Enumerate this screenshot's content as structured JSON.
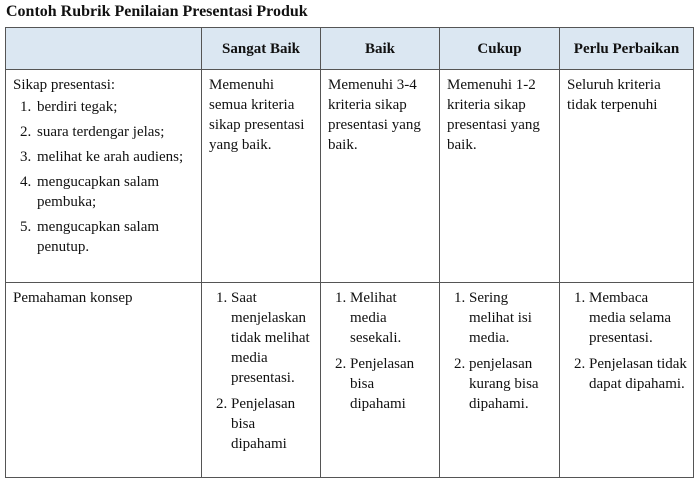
{
  "title": "Contoh Rubrik Penilaian Presentasi Produk",
  "table": {
    "headers": [
      "",
      "Sangat Baik",
      "Baik",
      "Cukup",
      "Perlu Perbaikan"
    ],
    "rows": [
      {
        "aspect_title": "Sikap presentasi:",
        "aspect_items": [
          "berdiri tegak;",
          "suara terdengar jelas;",
          "melihat ke arah audiens;",
          "mengucapkan salam pembuka;",
          "mengucapkan salam penutup."
        ],
        "sangat_baik": "Memenuhi semua kriteria sikap presentasi yang baik.",
        "baik": "Memenuhi 3-4 kriteria sikap presentasi yang baik.",
        "cukup": "Memenuhi 1-2 kriteria sikap presentasi yang baik.",
        "perlu_perbaikan": "Seluruh kriteria tidak terpenuhi"
      },
      {
        "aspect_title": "Pemahaman konsep",
        "sangat_baik": [
          "Saat menjelaskan tidak melihat media presentasi.",
          "Penjelasan bisa dipahami"
        ],
        "baik": [
          "Melihat media sesekali.",
          "Penjelasan bisa dipahami"
        ],
        "cukup": [
          "Sering melihat isi media.",
          "penjelasan kurang bisa dipahami."
        ],
        "perlu_perbaikan": [
          "Membaca media selama presentasi.",
          "Penjelasan tidak dapat dipahami."
        ]
      }
    ]
  }
}
